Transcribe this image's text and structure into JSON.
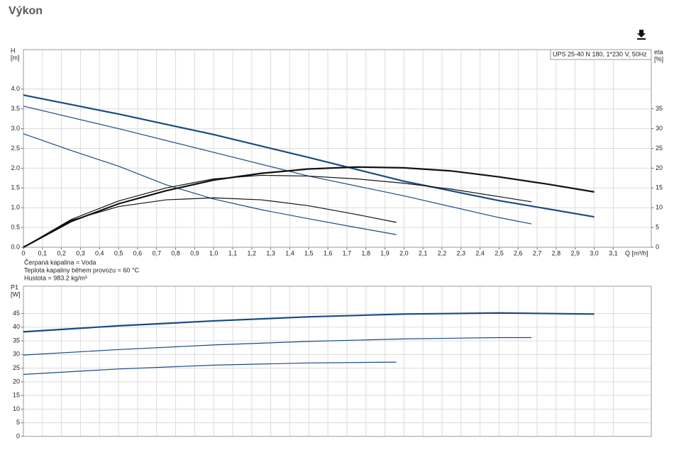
{
  "page_title": "Výkon",
  "chart_data": [
    {
      "type": "line",
      "annotation": "UPS 25-40 N 180, 1*230 V, 50Hz",
      "y_label": "H",
      "y_unit": "[m]",
      "y2_label": "eta",
      "y2_unit": "[%]",
      "x_label": "Q [m³/h]",
      "xlim": [
        0,
        3.3
      ],
      "xticks": [
        0,
        {
          "value": 0.1,
          "label": "0,1"
        },
        {
          "value": 0.2,
          "label": "0,2"
        },
        {
          "value": 0.3,
          "label": "0,3"
        },
        {
          "value": 0.4,
          "label": "0,4"
        },
        {
          "value": 0.5,
          "label": "0,5"
        },
        {
          "value": 0.6,
          "label": "0,6"
        },
        {
          "value": 0.7,
          "label": "0,7"
        },
        {
          "value": 0.8,
          "label": "0,8"
        },
        {
          "value": 0.9,
          "label": "0,9"
        },
        {
          "value": 1.0,
          "label": "1,0"
        },
        {
          "value": 1.1,
          "label": "1,1"
        },
        {
          "value": 1.2,
          "label": "1,2"
        },
        {
          "value": 1.3,
          "label": "1,3"
        },
        {
          "value": 1.4,
          "label": "1,4"
        },
        {
          "value": 1.5,
          "label": "1,5"
        },
        {
          "value": 1.6,
          "label": "1,6"
        },
        {
          "value": 1.7,
          "label": "1,7"
        },
        {
          "value": 1.8,
          "label": "1,8"
        },
        {
          "value": 1.9,
          "label": "1,9"
        },
        {
          "value": 2.0,
          "label": "2,0"
        },
        {
          "value": 2.1,
          "label": "2,1"
        },
        {
          "value": 2.2,
          "label": "2,2"
        },
        {
          "value": 2.3,
          "label": "2,3"
        },
        {
          "value": 2.4,
          "label": "2,4"
        },
        {
          "value": 2.5,
          "label": "2,5"
        },
        {
          "value": 2.6,
          "label": "2,6"
        },
        {
          "value": 2.7,
          "label": "2,7"
        },
        {
          "value": 2.8,
          "label": "2,8"
        },
        {
          "value": 2.9,
          "label": "2,9"
        },
        {
          "value": 3.0,
          "label": "3,0"
        },
        {
          "value": 3.1,
          "label": "3,1"
        }
      ],
      "ylim": [
        0,
        5
      ],
      "yticks": [
        {
          "value": 0,
          "label": "0.0"
        },
        0.5,
        {
          "value": 1,
          "label": "1.0"
        },
        1.5,
        {
          "value": 2,
          "label": "2.0"
        },
        2.5,
        {
          "value": 3,
          "label": "3.0"
        },
        3.5,
        {
          "value": 4,
          "label": "4.0"
        }
      ],
      "y2lim": [
        0,
        50
      ],
      "y2ticks": [
        0,
        5,
        10,
        15,
        20,
        25,
        30,
        35
      ],
      "grid": true,
      "series": [
        {
          "color": "#1a4a85",
          "line_width": 2.2,
          "x": [
            0,
            0.5,
            1.0,
            1.5,
            2.0,
            2.5,
            3.0
          ],
          "values": [
            3.85,
            3.37,
            2.85,
            2.27,
            1.67,
            1.18,
            0.77
          ]
        },
        {
          "color": "#1a4a85",
          "line_width": 1.2,
          "x": [
            0,
            0.5,
            1.0,
            1.5,
            2.0,
            2.5,
            2.67
          ],
          "values": [
            3.57,
            3.0,
            2.4,
            1.8,
            1.3,
            0.75,
            0.59
          ]
        },
        {
          "color": "#1a4a85",
          "line_width": 1.2,
          "x": [
            0,
            0.25,
            0.5,
            0.75,
            1.0,
            1.25,
            1.5,
            1.75,
            1.96
          ],
          "values": [
            2.87,
            2.45,
            2.05,
            1.58,
            1.22,
            0.95,
            0.72,
            0.5,
            0.32
          ]
        },
        {
          "color": "#111111",
          "line_width": 2.2,
          "axis": "y2",
          "x": [
            0,
            0.25,
            0.5,
            0.75,
            1.0,
            1.25,
            1.5,
            1.75,
            2.0,
            2.25,
            2.5,
            2.75,
            3.0
          ],
          "values": [
            0,
            6.5,
            11,
            14.3,
            17,
            18.7,
            19.8,
            20.3,
            20.1,
            19.3,
            17.8,
            16,
            14
          ]
        },
        {
          "color": "#111111",
          "line_width": 1.2,
          "axis": "y2",
          "x": [
            0,
            0.25,
            0.5,
            0.75,
            1.0,
            1.25,
            1.5,
            1.75,
            2.0,
            2.25,
            2.5,
            2.67
          ],
          "values": [
            0,
            7,
            11.7,
            15,
            17.3,
            18.2,
            18,
            17.3,
            16.2,
            14.7,
            12.8,
            11.5
          ]
        },
        {
          "color": "#111111",
          "line_width": 1.2,
          "axis": "y2",
          "x": [
            0,
            0.25,
            0.5,
            0.75,
            1.0,
            1.25,
            1.5,
            1.75,
            1.96
          ],
          "values": [
            0,
            6.8,
            10.3,
            12.0,
            12.5,
            12.0,
            10.5,
            8.3,
            6.3
          ]
        }
      ],
      "notes": [
        "Čerpaná kapalina = Voda",
        "Teplota kapaliny během provozu = 60 °C",
        "Hustota = 983.2 kg/m³"
      ]
    },
    {
      "type": "line",
      "y_label": "P1",
      "y_unit": "[W]",
      "xlim": [
        0,
        3.3
      ],
      "ylim": [
        0,
        55
      ],
      "yticks": [
        0,
        5,
        10,
        15,
        20,
        25,
        30,
        35,
        40,
        45
      ],
      "grid": true,
      "series": [
        {
          "color": "#1a4a85",
          "line_width": 2.2,
          "x": [
            0,
            0.5,
            1.0,
            1.5,
            2.0,
            2.5,
            3.0
          ],
          "values": [
            38.3,
            40.5,
            42.3,
            43.8,
            44.8,
            45.2,
            44.8
          ]
        },
        {
          "color": "#1a4a85",
          "line_width": 1.2,
          "x": [
            0,
            0.5,
            1.0,
            1.5,
            2.0,
            2.5,
            2.67
          ],
          "values": [
            29.8,
            31.8,
            33.5,
            34.8,
            35.7,
            36.2,
            36.2
          ]
        },
        {
          "color": "#1a4a85",
          "line_width": 1.2,
          "x": [
            0,
            0.5,
            1.0,
            1.5,
            1.96
          ],
          "values": [
            22.7,
            24.7,
            26.1,
            26.9,
            27.2
          ]
        }
      ]
    }
  ]
}
